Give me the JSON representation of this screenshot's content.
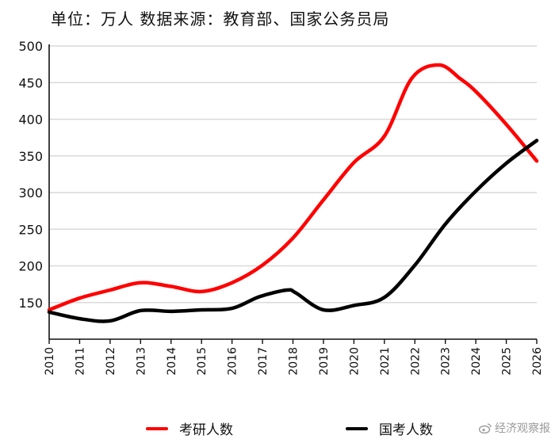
{
  "header": {
    "text": "单位：万人  数据来源：教育部、国家公务员局"
  },
  "chart_data": {
    "type": "line",
    "title": "",
    "xlabel": "",
    "ylabel": "",
    "x": [
      "2010",
      "2011",
      "2012",
      "2013",
      "2014",
      "2015",
      "2016",
      "2017",
      "2018",
      "2019",
      "2020",
      "2021",
      "2022",
      "2023",
      "2024",
      "2025",
      "2026"
    ],
    "xlim": [
      2010,
      2026
    ],
    "ylim": [
      100,
      500
    ],
    "yticks": [
      150,
      200,
      250,
      300,
      350,
      400,
      450,
      500
    ],
    "grid": "horizontal",
    "legend_position": "bottom",
    "series": [
      {
        "name": "考研人数",
        "color": "#ff0000",
        "x": [
          2010,
          2011,
          2012,
          2013,
          2014,
          2015,
          2016,
          2017,
          2018,
          2019,
          2020,
          2021,
          2021.9,
          2022.8,
          2023.5,
          2024,
          2025,
          2026
        ],
        "values": [
          140,
          156,
          167,
          177,
          172,
          165,
          177,
          201,
          238,
          290,
          341,
          377,
          456,
          474,
          455,
          438,
          393,
          343
        ]
      },
      {
        "name": "国考人数",
        "color": "#000000",
        "x": [
          2010,
          2011,
          2012,
          2013,
          2014,
          2015,
          2016,
          2016.9,
          2017.8,
          2018.1,
          2019,
          2020,
          2021,
          2022,
          2023,
          2024,
          2025,
          2026
        ],
        "values": [
          137,
          128,
          125,
          139,
          138,
          140,
          142,
          158,
          167,
          163,
          140,
          146,
          157,
          201,
          257,
          302,
          340,
          371
        ]
      }
    ]
  },
  "legend": {
    "items": [
      {
        "label": "考研人数",
        "color": "#ff0000"
      },
      {
        "label": "国考人数",
        "color": "#000000"
      }
    ]
  },
  "watermark": {
    "text": "经济观察报",
    "icon": "weibo-icon"
  }
}
